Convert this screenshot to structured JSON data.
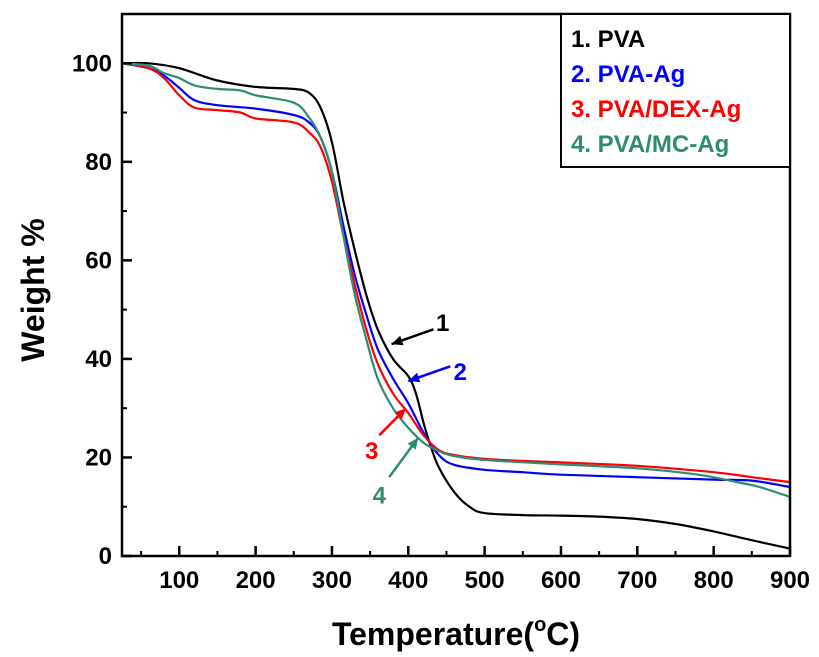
{
  "chart_data": {
    "type": "line",
    "xlabel": "Temperature(",
    "xlabel_sup": "o",
    "xlabel_end": "C)",
    "ylabel": "Weight %",
    "xlim": [
      25,
      900
    ],
    "ylim": [
      0,
      110
    ],
    "x_ticks": [
      100,
      200,
      300,
      400,
      500,
      600,
      700,
      800,
      900
    ],
    "y_ticks": [
      0,
      20,
      40,
      60,
      80,
      100
    ],
    "grid": false,
    "legend_position": "top-right",
    "series": [
      {
        "name": "1. PVA",
        "color": "#000000",
        "annotation": "1",
        "points": [
          [
            25,
            100
          ],
          [
            60,
            100
          ],
          [
            100,
            99
          ],
          [
            150,
            96.5
          ],
          [
            200,
            95.2
          ],
          [
            250,
            94.8
          ],
          [
            270,
            94
          ],
          [
            285,
            91
          ],
          [
            300,
            84
          ],
          [
            315,
            72
          ],
          [
            330,
            62
          ],
          [
            345,
            53
          ],
          [
            360,
            46
          ],
          [
            380,
            40
          ],
          [
            400,
            36.5
          ],
          [
            410,
            33
          ],
          [
            420,
            27
          ],
          [
            430,
            22
          ],
          [
            440,
            18
          ],
          [
            460,
            13
          ],
          [
            480,
            10
          ],
          [
            500,
            8.7
          ],
          [
            550,
            8.3
          ],
          [
            600,
            8.2
          ],
          [
            650,
            8
          ],
          [
            700,
            7.5
          ],
          [
            750,
            6.5
          ],
          [
            800,
            5
          ],
          [
            850,
            3.2
          ],
          [
            900,
            1.5
          ]
        ]
      },
      {
        "name": "2. PVA-Ag",
        "color": "#0000ff",
        "annotation": "2",
        "points": [
          [
            25,
            100
          ],
          [
            60,
            99
          ],
          [
            80,
            97.5
          ],
          [
            100,
            95
          ],
          [
            120,
            92.5
          ],
          [
            150,
            91.5
          ],
          [
            200,
            90.8
          ],
          [
            250,
            89.5
          ],
          [
            270,
            88
          ],
          [
            285,
            85
          ],
          [
            300,
            78
          ],
          [
            315,
            67
          ],
          [
            330,
            57
          ],
          [
            345,
            49
          ],
          [
            360,
            42
          ],
          [
            380,
            36
          ],
          [
            400,
            31
          ],
          [
            420,
            25
          ],
          [
            440,
            20.5
          ],
          [
            460,
            18.5
          ],
          [
            500,
            17.5
          ],
          [
            550,
            17
          ],
          [
            600,
            16.5
          ],
          [
            700,
            16
          ],
          [
            800,
            15.5
          ],
          [
            850,
            15.3
          ],
          [
            900,
            14
          ]
        ]
      },
      {
        "name": "3. PVA/DEX-Ag",
        "color": "#ff0000",
        "annotation": "3",
        "points": [
          [
            25,
            100
          ],
          [
            60,
            99
          ],
          [
            80,
            97
          ],
          [
            100,
            93.5
          ],
          [
            120,
            91
          ],
          [
            150,
            90.5
          ],
          [
            180,
            90
          ],
          [
            200,
            88.8
          ],
          [
            250,
            88
          ],
          [
            270,
            86
          ],
          [
            285,
            83
          ],
          [
            300,
            76
          ],
          [
            315,
            65
          ],
          [
            330,
            55
          ],
          [
            345,
            46
          ],
          [
            360,
            39
          ],
          [
            380,
            33
          ],
          [
            400,
            29
          ],
          [
            420,
            24.5
          ],
          [
            440,
            21.5
          ],
          [
            460,
            20.5
          ],
          [
            500,
            19.7
          ],
          [
            550,
            19.3
          ],
          [
            600,
            19
          ],
          [
            700,
            18.3
          ],
          [
            800,
            17
          ],
          [
            850,
            16
          ],
          [
            900,
            15
          ]
        ]
      },
      {
        "name": "4. PVA/MC-Ag",
        "color": "#2e8b74",
        "annotation": "4",
        "points": [
          [
            25,
            100
          ],
          [
            60,
            99.5
          ],
          [
            80,
            98
          ],
          [
            100,
            97
          ],
          [
            120,
            95.5
          ],
          [
            150,
            94.8
          ],
          [
            180,
            94.5
          ],
          [
            200,
            93.5
          ],
          [
            250,
            92
          ],
          [
            270,
            89
          ],
          [
            285,
            85
          ],
          [
            300,
            78
          ],
          [
            315,
            65
          ],
          [
            330,
            53
          ],
          [
            345,
            44
          ],
          [
            360,
            36
          ],
          [
            380,
            30
          ],
          [
            400,
            26
          ],
          [
            420,
            23
          ],
          [
            440,
            21.3
          ],
          [
            460,
            20.3
          ],
          [
            500,
            19.5
          ],
          [
            600,
            18.6
          ],
          [
            700,
            17.8
          ],
          [
            780,
            16.5
          ],
          [
            830,
            15
          ],
          [
            860,
            14
          ],
          [
            900,
            12
          ]
        ]
      }
    ],
    "annotations": [
      {
        "label": "1",
        "color": "#000000",
        "text_at": [
          445,
          47.5
        ],
        "arrow_from": [
          433,
          46
        ],
        "arrow_to": [
          378,
          43
        ]
      },
      {
        "label": "2",
        "color": "#0000ff",
        "text_at": [
          468,
          37.5
        ],
        "arrow_from": [
          455,
          38.5
        ],
        "arrow_to": [
          400,
          35.5
        ]
      },
      {
        "label": "3",
        "color": "#ff0000",
        "text_at": [
          352,
          21.5
        ],
        "arrow_from": [
          362,
          24.5
        ],
        "arrow_to": [
          397,
          30
        ]
      },
      {
        "label": "4",
        "color": "#2e8b74",
        "text_at": [
          362,
          12.5
        ],
        "arrow_from": [
          375,
          16
        ],
        "arrow_to": [
          413,
          24
        ]
      }
    ]
  }
}
